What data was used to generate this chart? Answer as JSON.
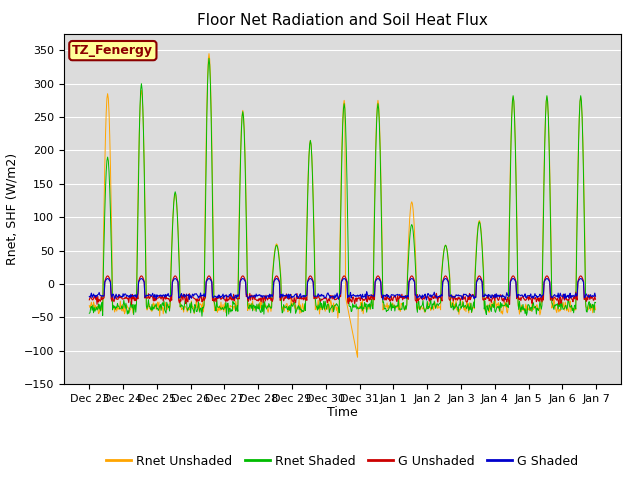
{
  "title": "Floor Net Radiation and Soil Heat Flux",
  "ylabel": "Rnet, SHF (W/m2)",
  "xlabel": "Time",
  "annotation": "TZ_Fenergy",
  "ylim": [
    -150,
    375
  ],
  "yticks": [
    -150,
    -100,
    -50,
    0,
    50,
    100,
    150,
    200,
    250,
    300,
    350
  ],
  "colors": {
    "rnet_unshaded": "#FFA500",
    "rnet_shaded": "#00BB00",
    "g_unshaded": "#CC0000",
    "g_shaded": "#0000CC"
  },
  "legend_labels": [
    "Rnet Unshaded",
    "Rnet Shaded",
    "G Unshaded",
    "G Shaded"
  ],
  "bg_color": "#DCDCDC",
  "title_fontsize": 11,
  "label_fontsize": 9,
  "tick_fontsize": 8,
  "annotation_facecolor": "#FFFF99",
  "annotation_edgecolor": "#8B0000",
  "annotation_textcolor": "#8B0000"
}
